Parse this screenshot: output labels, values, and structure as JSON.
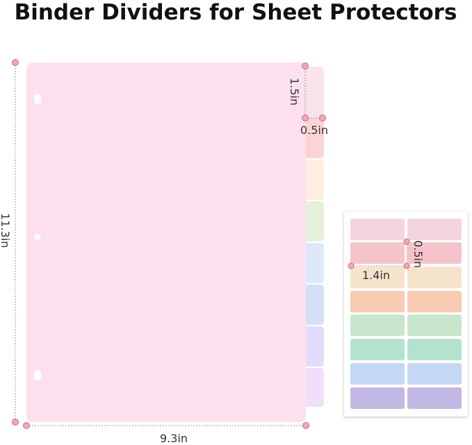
{
  "title": "Binder Dividers for Sheet Protectors",
  "divider": {
    "height": "11.3in",
    "width": "9.3in",
    "tab_height": "1.5in",
    "tab_width": "0.5in"
  },
  "label_sheet": {
    "label_height": "0.5in",
    "label_width": "1.4in"
  }
}
